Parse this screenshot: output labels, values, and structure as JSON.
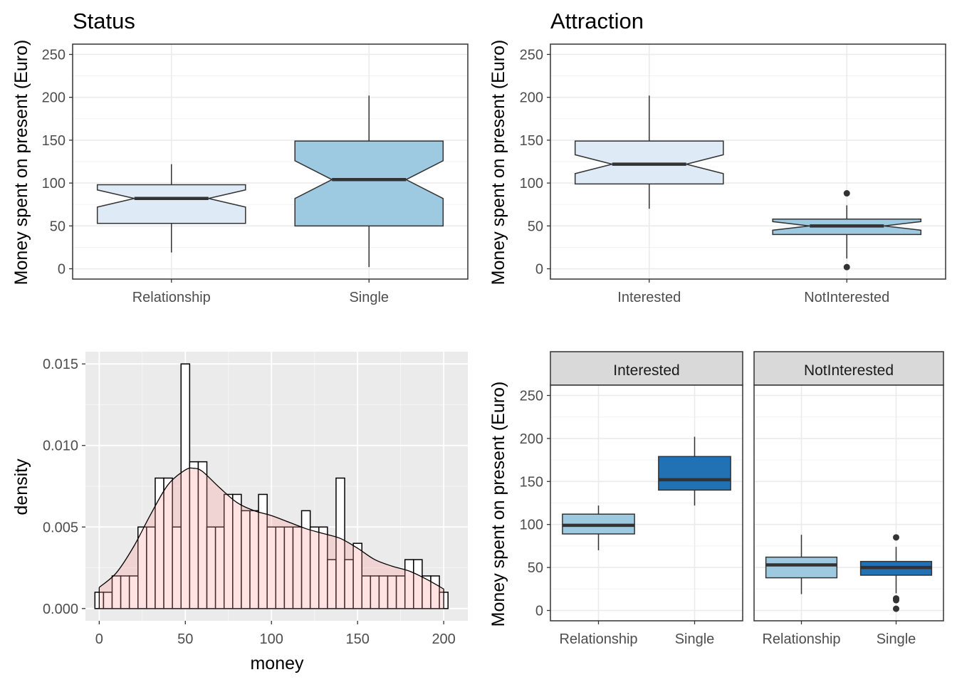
{
  "chart_data": [
    {
      "type": "boxplot",
      "notched": true,
      "title": "Status",
      "xlabel": "",
      "ylabel": "Money spent on present (Euro)",
      "ylim": [
        -12,
        262
      ],
      "yticks": [
        "0",
        "50",
        "100",
        "150",
        "200",
        "250"
      ],
      "grid": true,
      "categories": [
        "Relationship",
        "Single"
      ],
      "colors": [
        "#DEEBF7",
        "#9ECAE1"
      ],
      "boxes": [
        {
          "category": "Relationship",
          "lower_whisker": 19,
          "q1": 53,
          "median": 82,
          "q3": 98,
          "upper_whisker": 122,
          "notch": [
            72,
            92
          ],
          "outliers": []
        },
        {
          "category": "Single",
          "lower_whisker": 2,
          "q1": 50,
          "median": 104,
          "q3": 149,
          "upper_whisker": 202,
          "notch": [
            82,
            126
          ],
          "outliers": []
        }
      ]
    },
    {
      "type": "boxplot",
      "notched": true,
      "title": "Attraction",
      "xlabel": "",
      "ylabel": "Money spent on present (Euro)",
      "ylim": [
        -12,
        262
      ],
      "yticks": [
        "0",
        "50",
        "100",
        "150",
        "200",
        "250"
      ],
      "grid": true,
      "categories": [
        "Interested",
        "NotInterested"
      ],
      "colors": [
        "#DEEBF7",
        "#9ECAE1"
      ],
      "boxes": [
        {
          "category": "Interested",
          "lower_whisker": 70,
          "q1": 99,
          "median": 122,
          "q3": 149,
          "upper_whisker": 202,
          "notch": [
            111,
            133
          ],
          "outliers": []
        },
        {
          "category": "NotInterested",
          "lower_whisker": 12,
          "q1": 40,
          "median": 50,
          "q3": 58,
          "upper_whisker": 74,
          "notch": [
            45,
            55
          ],
          "outliers": [
            88,
            2
          ]
        }
      ]
    },
    {
      "type": "histogram",
      "title": "",
      "xlabel": "money",
      "ylabel": "density",
      "xlim": [
        -8,
        214
      ],
      "ylim": [
        -0.00075,
        0.01575
      ],
      "xticks": [
        "0",
        "50",
        "100",
        "150",
        "200"
      ],
      "yticks": [
        "0.000",
        "0.005",
        "0.010",
        "0.015"
      ],
      "grid": true,
      "bin_width": 5,
      "bin_starts": [
        -2.5,
        2.5,
        7.5,
        12.5,
        17.5,
        22.5,
        27.5,
        32.5,
        37.5,
        42.5,
        47.5,
        52.5,
        57.5,
        62.5,
        67.5,
        72.5,
        77.5,
        82.5,
        87.5,
        92.5,
        97.5,
        102.5,
        107.5,
        112.5,
        117.5,
        122.5,
        127.5,
        132.5,
        137.5,
        142.5,
        147.5,
        152.5,
        157.5,
        162.5,
        167.5,
        172.5,
        177.5,
        182.5,
        187.5,
        192.5,
        197.5
      ],
      "density": [
        0.001,
        0.001,
        0.002,
        0.002,
        0.002,
        0.005,
        0.005,
        0.008,
        0.008,
        0.005,
        0.015,
        0.009,
        0.009,
        0.005,
        0.005,
        0.007,
        0.007,
        0.006,
        0.006,
        0.007,
        0.005,
        0.005,
        0.005,
        0.005,
        0.006,
        0.005,
        0.005,
        0.003,
        0.008,
        0.003,
        0.004,
        0.002,
        0.002,
        0.002,
        0.002,
        0.002,
        0.003,
        0.003,
        0.002,
        0.002,
        0.001
      ],
      "kde": {
        "x": [
          0,
          10,
          20,
          30,
          40,
          50,
          55,
          60,
          70,
          80,
          90,
          100,
          110,
          120,
          130,
          140,
          150,
          160,
          170,
          180,
          190,
          200
        ],
        "y": [
          0.0013,
          0.0022,
          0.0038,
          0.0058,
          0.0076,
          0.0085,
          0.0086,
          0.0084,
          0.0074,
          0.0065,
          0.006,
          0.0057,
          0.0053,
          0.0049,
          0.0046,
          0.0043,
          0.0037,
          0.003,
          0.0026,
          0.0023,
          0.0018,
          0.0012
        ]
      },
      "bar_fill": "#FFFFFF",
      "density_fill": "#FF9999"
    },
    {
      "type": "boxplot",
      "faceted": true,
      "title": "",
      "xlabel": "",
      "ylabel": "Money spent on present (Euro)",
      "ylim": [
        -12,
        262
      ],
      "yticks": [
        "0",
        "50",
        "100",
        "150",
        "200",
        "250"
      ],
      "grid": true,
      "categories": [
        "Relationship",
        "Single"
      ],
      "colors": [
        "#9ECAE1",
        "#2171B5"
      ],
      "panels": [
        {
          "strip": "Interested",
          "boxes": [
            {
              "category": "Relationship",
              "lower_whisker": 70,
              "q1": 89,
              "median": 99,
              "q3": 112,
              "upper_whisker": 122,
              "outliers": []
            },
            {
              "category": "Single",
              "lower_whisker": 122,
              "q1": 140,
              "median": 152,
              "q3": 179,
              "upper_whisker": 202,
              "outliers": []
            }
          ]
        },
        {
          "strip": "NotInterested",
          "boxes": [
            {
              "category": "Relationship",
              "lower_whisker": 19,
              "q1": 38,
              "median": 53,
              "q3": 62,
              "upper_whisker": 88,
              "outliers": []
            },
            {
              "category": "Single",
              "lower_whisker": 20,
              "q1": 41,
              "median": 50,
              "q3": 57,
              "upper_whisker": 74,
              "outliers": [
                85,
                14,
                12,
                2
              ]
            }
          ]
        }
      ]
    }
  ]
}
